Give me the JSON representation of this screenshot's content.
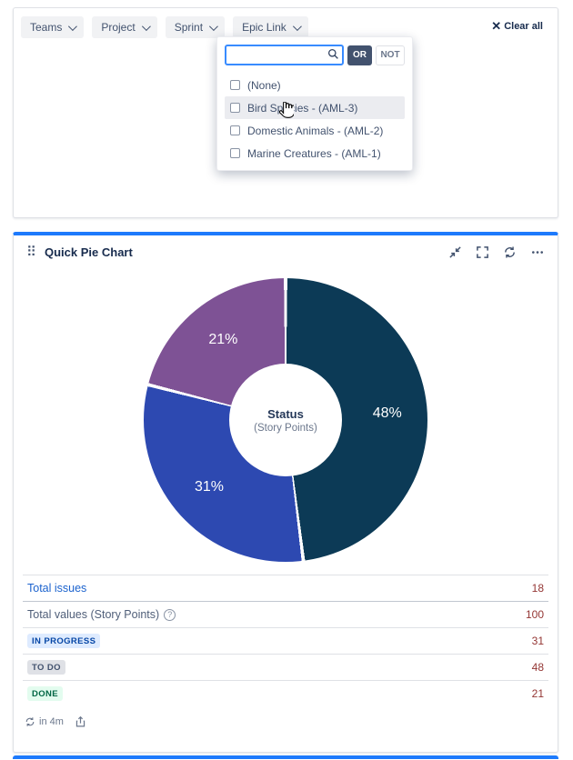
{
  "theme": {
    "accent": "#1d7afc",
    "link": "#1c63ce",
    "value_color": "#943634"
  },
  "filter_bar": {
    "buttons": [
      "Teams",
      "Project",
      "Sprint",
      "Epic Link"
    ],
    "clear_all": "Clear all",
    "clear_icon": "close-x"
  },
  "epic_dropdown": {
    "search_value": "",
    "or_label": "OR",
    "not_label": "NOT",
    "options": [
      {
        "label": "(None)",
        "checked": false
      },
      {
        "label": "Bird Species - (AML-3)",
        "checked": false,
        "hovered": true
      },
      {
        "label": "Domestic Animals - (AML-2)",
        "checked": false
      },
      {
        "label": "Marine Creatures - (AML-1)",
        "checked": false
      }
    ]
  },
  "gadget": {
    "title": "Quick Pie Chart",
    "refresh_note": "in 4m"
  },
  "chart_data": {
    "type": "pie",
    "donut": true,
    "title": "Status (Story Points)",
    "center_label": "Status",
    "center_sublabel": "(Story Points)",
    "legend_position": "none",
    "slices": [
      {
        "name": "To Do",
        "value": 48,
        "label": "48%",
        "color": "#0c3a56"
      },
      {
        "name": "In Progress",
        "value": 31,
        "label": "31%",
        "color": "#2d49b1"
      },
      {
        "name": "Done",
        "value": 21,
        "label": "21%",
        "color": "#7e5295"
      }
    ]
  },
  "summary": {
    "rows": [
      {
        "label": "Total issues",
        "value": "18"
      },
      {
        "label": "Total values (Story Points)",
        "value": "100"
      }
    ],
    "statuses": [
      {
        "label": "IN PROGRESS",
        "value": "31",
        "bg": "#deebff",
        "fg": "#0747a6"
      },
      {
        "label": "TO DO",
        "value": "48",
        "bg": "#dfe1e6",
        "fg": "#42526e"
      },
      {
        "label": "DONE",
        "value": "21",
        "bg": "#e3fcef",
        "fg": "#006644"
      }
    ]
  }
}
